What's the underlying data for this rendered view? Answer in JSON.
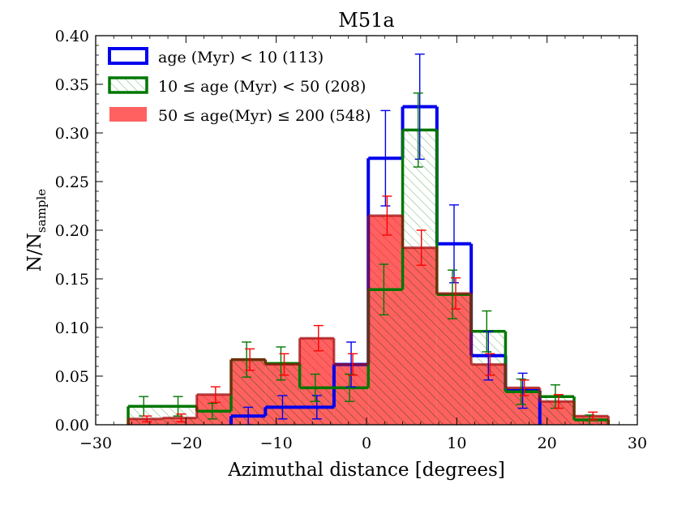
{
  "chart_data": {
    "type": "histogram",
    "title": "M51a",
    "xlabel": "Azimuthal distance [degrees]",
    "ylabel_main": "N/N",
    "ylabel_sub": "sample",
    "xlim": [
      -30,
      30
    ],
    "ylim": [
      0,
      0.4
    ],
    "xticks": [
      -30,
      -20,
      -10,
      0,
      10,
      20,
      30
    ],
    "xtick_labels": [
      "−30",
      "−20",
      "−10",
      "0",
      "10",
      "20",
      "30"
    ],
    "yticks": [
      0,
      0.05,
      0.1,
      0.15,
      0.2,
      0.25,
      0.3,
      0.35,
      0.4
    ],
    "ytick_labels": [
      "0.00",
      "0.05",
      "0.10",
      "0.15",
      "0.20",
      "0.25",
      "0.30",
      "0.35",
      "0.40"
    ],
    "bin_edges": [
      -26.4,
      -22.6,
      -18.8,
      -15.0,
      -11.2,
      -7.4,
      -3.6,
      0.2,
      4.0,
      7.8,
      11.6,
      15.4,
      19.2,
      23.0,
      26.8
    ],
    "legend_position": "top-left",
    "series": [
      {
        "name": "blue",
        "label": "age (Myr) < 10 (113)",
        "color": "#0000ee",
        "style": "step",
        "values": [
          0,
          0,
          0,
          0.009,
          0.018,
          0.018,
          0.062,
          0.274,
          0.327,
          0.186,
          0.071,
          0.035,
          0,
          0
        ],
        "errors": [
          0,
          0,
          0,
          0.009,
          0.012,
          0.012,
          0.023,
          0.049,
          0.054,
          0.04,
          0.025,
          0.018,
          0,
          0
        ]
      },
      {
        "name": "green",
        "label": "10 ≤ age (Myr) < 50 (208)",
        "color": "#007700",
        "style": "hatched",
        "values": [
          0.019,
          0.019,
          0.014,
          0.067,
          0.063,
          0.038,
          0.038,
          0.139,
          0.303,
          0.134,
          0.096,
          0.034,
          0.029,
          0.005
        ],
        "errors": [
          0.01,
          0.01,
          0.008,
          0.018,
          0.017,
          0.014,
          0.014,
          0.026,
          0.038,
          0.025,
          0.021,
          0.013,
          0.012,
          0.005
        ]
      },
      {
        "name": "red",
        "label": "50 ≤ age(Myr) ≤ 200 (548)",
        "color": "#ff0000",
        "style": "filled",
        "values": [
          0.006,
          0.007,
          0.031,
          0.067,
          0.062,
          0.089,
          0.062,
          0.215,
          0.182,
          0.135,
          0.062,
          0.038,
          0.024,
          0.009
        ],
        "errors": [
          0.003,
          0.004,
          0.008,
          0.011,
          0.011,
          0.013,
          0.011,
          0.02,
          0.018,
          0.016,
          0.011,
          0.008,
          0.007,
          0.004
        ]
      }
    ]
  }
}
